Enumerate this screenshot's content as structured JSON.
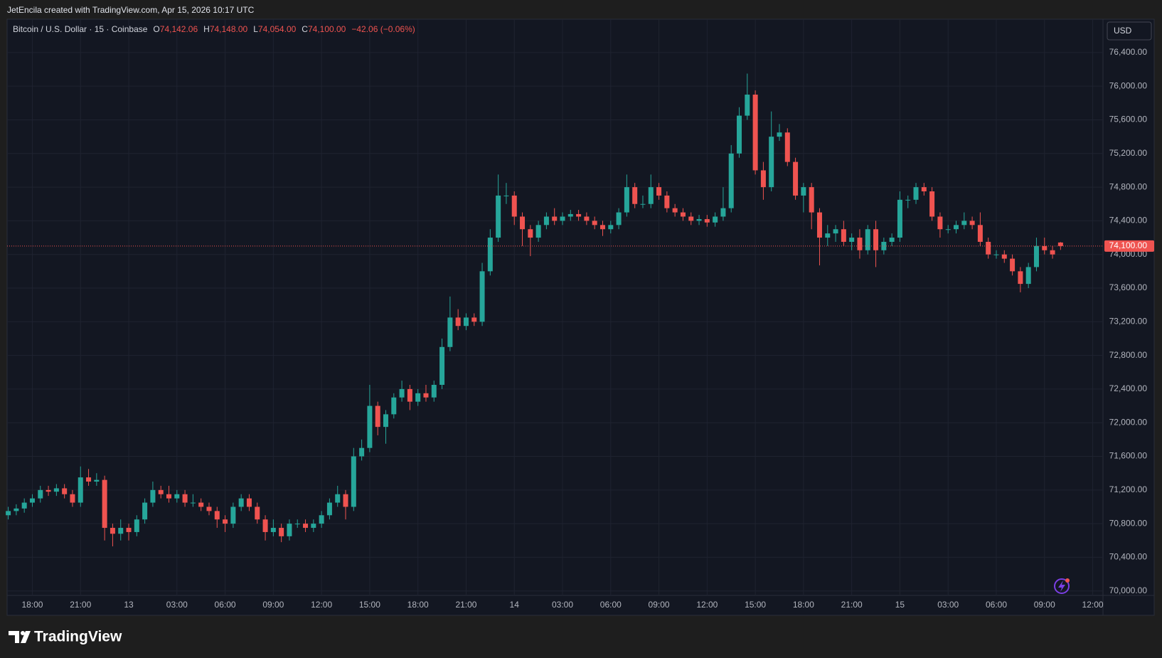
{
  "chart_data": {
    "type": "candlestick",
    "attribution": "JetEncila created with TradingView.com, Apr 15, 2026 10:17 UTC",
    "title": "Bitcoin / U.S. Dollar · 15 · Coinbase",
    "ohlc_header": {
      "open_label": "O",
      "open": "74,142.06",
      "high_label": "H",
      "high": "74,148.00",
      "low_label": "L",
      "low": "74,054.00",
      "close_label": "C",
      "close": "74,100.00",
      "change": "−42.06 (−0.06%)"
    },
    "currency": "USD",
    "brand": "TradingView",
    "up_color": "#26a69a",
    "down_color": "#ef5350",
    "grid": true,
    "last_price": {
      "value": 74100,
      "label": "74,100.00"
    },
    "xlim": [
      16.43,
      84.64
    ],
    "ylim": [
      69947,
      76788
    ],
    "xticks": [
      {
        "value": 18,
        "label": "18:00"
      },
      {
        "value": 21,
        "label": "21:00"
      },
      {
        "value": 24,
        "label": "13"
      },
      {
        "value": 27,
        "label": "03:00"
      },
      {
        "value": 30,
        "label": "06:00"
      },
      {
        "value": 33,
        "label": "09:00"
      },
      {
        "value": 36,
        "label": "12:00"
      },
      {
        "value": 39,
        "label": "15:00"
      },
      {
        "value": 42,
        "label": "18:00"
      },
      {
        "value": 45,
        "label": "21:00"
      },
      {
        "value": 48,
        "label": "14"
      },
      {
        "value": 51,
        "label": "03:00"
      },
      {
        "value": 54,
        "label": "06:00"
      },
      {
        "value": 57,
        "label": "09:00"
      },
      {
        "value": 60,
        "label": "12:00"
      },
      {
        "value": 63,
        "label": "15:00"
      },
      {
        "value": 66,
        "label": "18:00"
      },
      {
        "value": 69,
        "label": "21:00"
      },
      {
        "value": 72,
        "label": "15"
      },
      {
        "value": 75,
        "label": "03:00"
      },
      {
        "value": 78,
        "label": "06:00"
      },
      {
        "value": 81,
        "label": "09:00"
      },
      {
        "value": 84,
        "label": "12:00"
      }
    ],
    "yticks": [
      {
        "value": 70000,
        "label": "70,000.00"
      },
      {
        "value": 70400,
        "label": "70,400.00"
      },
      {
        "value": 70800,
        "label": "70,800.00"
      },
      {
        "value": 71200,
        "label": "71,200.00"
      },
      {
        "value": 71600,
        "label": "71,600.00"
      },
      {
        "value": 72000,
        "label": "72,000.00"
      },
      {
        "value": 72400,
        "label": "72,400.00"
      },
      {
        "value": 72800,
        "label": "72,800.00"
      },
      {
        "value": 73200,
        "label": "73,200.00"
      },
      {
        "value": 73600,
        "label": "73,600.00"
      },
      {
        "value": 74000,
        "label": "74,000.00"
      },
      {
        "value": 74400,
        "label": "74,400.00"
      },
      {
        "value": 74800,
        "label": "74,800.00"
      },
      {
        "value": 75200,
        "label": "75,200.00"
      },
      {
        "value": 75600,
        "label": "75,600.00"
      },
      {
        "value": 76000,
        "label": "76,000.00"
      },
      {
        "value": 76400,
        "label": "76,400.00"
      }
    ],
    "x": [
      16.5,
      17,
      17.5,
      18,
      18.5,
      19,
      19.5,
      20,
      20.5,
      21,
      21.5,
      22,
      22.5,
      23,
      23.5,
      24,
      24.5,
      25,
      25.5,
      26,
      26.5,
      27,
      27.5,
      28,
      28.5,
      29,
      29.5,
      30,
      30.5,
      31,
      31.5,
      32,
      32.5,
      33,
      33.5,
      34,
      34.5,
      35,
      35.5,
      36,
      36.5,
      37,
      37.5,
      38,
      38.5,
      39,
      39.5,
      40,
      40.5,
      41,
      41.5,
      42,
      42.5,
      43,
      43.5,
      44,
      44.5,
      45,
      45.5,
      46,
      46.5,
      47,
      47.5,
      48,
      48.5,
      49,
      49.5,
      50,
      50.5,
      51,
      51.5,
      52,
      52.5,
      53,
      53.5,
      54,
      54.5,
      55,
      55.5,
      56,
      56.5,
      57,
      57.5,
      58,
      58.5,
      59,
      59.5,
      60,
      60.5,
      61,
      61.5,
      62,
      62.5,
      63,
      63.5,
      64,
      64.5,
      65,
      65.5,
      66,
      66.5,
      67,
      67.5,
      68,
      68.5,
      69,
      69.5,
      70,
      70.5,
      71,
      71.5,
      72,
      72.5,
      73,
      73.5,
      74,
      74.5,
      75,
      75.5,
      76,
      76.5,
      77,
      77.5,
      78,
      78.5,
      79,
      79.5,
      80,
      80.5,
      81,
      81.5,
      82
    ],
    "open": [
      70900,
      70950,
      70980,
      71050,
      71100,
      71200,
      71180,
      71220,
      71150,
      71050,
      71350,
      71300,
      71320,
      70750,
      70680,
      70750,
      70700,
      70850,
      71050,
      71200,
      71150,
      71100,
      71150,
      71050,
      71050,
      71000,
      70950,
      70850,
      70800,
      71000,
      71100,
      71000,
      70850,
      70700,
      70750,
      70650,
      70800,
      70800,
      70750,
      70800,
      70900,
      71050,
      71150,
      71000,
      71600,
      71700,
      72200,
      71950,
      72100,
      72300,
      72400,
      72250,
      72350,
      72300,
      72450,
      72900,
      73250,
      73150,
      73250,
      73200,
      73800,
      74200,
      74700,
      74700,
      74450,
      74300,
      74200,
      74350,
      74450,
      74400,
      74450,
      74480,
      74450,
      74400,
      74350,
      74300,
      74350,
      74500,
      74800,
      74600,
      74600,
      74800,
      74700,
      74550,
      74500,
      74450,
      74400,
      74420,
      74380,
      74450,
      74550,
      75200,
      75650,
      75900,
      75000,
      74800,
      75400,
      75450,
      75100,
      74700,
      74800,
      74500,
      74200,
      74250,
      74300,
      74150,
      74200,
      74050,
      74300,
      74050,
      74150,
      74200,
      74650,
      74650,
      74800,
      74750,
      74450,
      74300,
      74300,
      74350,
      74400,
      74350,
      74150,
      74000,
      74000,
      73950,
      73800,
      73650,
      73850,
      74100,
      74050,
      74142.06
    ],
    "high": [
      71000,
      71030,
      71100,
      71150,
      71250,
      71250,
      71270,
      71270,
      71200,
      71480,
      71450,
      71400,
      71370,
      70800,
      70850,
      70800,
      70900,
      71100,
      71300,
      71250,
      71250,
      71200,
      71200,
      71150,
      71100,
      71050,
      71000,
      70900,
      71050,
      71150,
      71150,
      71050,
      70900,
      70850,
      70800,
      70850,
      70850,
      70850,
      70850,
      70950,
      71100,
      71250,
      71200,
      71700,
      71800,
      72450,
      72250,
      72150,
      72350,
      72500,
      72450,
      72400,
      72450,
      72500,
      73000,
      73500,
      73350,
      73300,
      73300,
      73900,
      74300,
      74950,
      74850,
      74750,
      74500,
      74350,
      74400,
      74500,
      74550,
      74500,
      74530,
      74530,
      74500,
      74450,
      74400,
      74400,
      74550,
      74950,
      74850,
      74700,
      74950,
      74850,
      74750,
      74600,
      74550,
      74500,
      74470,
      74470,
      74500,
      74800,
      75300,
      75750,
      76150,
      75950,
      75100,
      75700,
      75550,
      75500,
      75150,
      74850,
      74850,
      74550,
      74350,
      74350,
      74400,
      74250,
      74300,
      74350,
      74400,
      74200,
      74250,
      74750,
      74700,
      74850,
      74850,
      74800,
      74500,
      74350,
      74400,
      74500,
      74450,
      74500,
      74200,
      74050,
      74050,
      74000,
      73850,
      73900,
      74200,
      74200,
      74100,
      74148
    ],
    "low": [
      70850,
      70900,
      70930,
      71000,
      71050,
      71130,
      71130,
      71100,
      71000,
      71000,
      71250,
      71250,
      70600,
      70530,
      70600,
      70600,
      70650,
      70800,
      71000,
      71100,
      71050,
      71050,
      71000,
      71000,
      70950,
      70900,
      70750,
      70700,
      70750,
      70950,
      70950,
      70800,
      70600,
      70650,
      70580,
      70600,
      70750,
      70700,
      70700,
      70750,
      70850,
      71000,
      70850,
      70950,
      71550,
      71650,
      71850,
      71750,
      72050,
      72250,
      72150,
      72200,
      72250,
      72250,
      72400,
      72850,
      73100,
      73100,
      73150,
      73150,
      73750,
      74150,
      74600,
      74350,
      74100,
      73980,
      74150,
      74300,
      74350,
      74350,
      74400,
      74400,
      74350,
      74300,
      74220,
      74250,
      74300,
      74450,
      74550,
      74550,
      74550,
      74650,
      74500,
      74450,
      74400,
      74350,
      74350,
      74330,
      74330,
      74400,
      74500,
      75150,
      75600,
      74950,
      74650,
      74750,
      75350,
      75050,
      74650,
      74500,
      74300,
      73870,
      74100,
      74150,
      74100,
      74050,
      73950,
      74000,
      73850,
      74000,
      74100,
      74150,
      74550,
      74600,
      74700,
      74400,
      74200,
      74250,
      74250,
      74300,
      74300,
      74100,
      73950,
      73950,
      73900,
      73750,
      73550,
      73600,
      73800,
      74000,
      73950,
      74054
    ],
    "close": [
      70950,
      70980,
      71050,
      71100,
      71200,
      71180,
      71220,
      71150,
      71050,
      71350,
      71300,
      71320,
      70750,
      70680,
      70750,
      70700,
      70850,
      71050,
      71200,
      71150,
      71100,
      71150,
      71050,
      71050,
      71000,
      70950,
      70850,
      70800,
      71000,
      71100,
      71000,
      70850,
      70700,
      70750,
      70650,
      70800,
      70800,
      70750,
      70800,
      70900,
      71050,
      71150,
      71000,
      71600,
      71700,
      72200,
      71950,
      72100,
      72300,
      72400,
      72250,
      72350,
      72300,
      72450,
      72900,
      73250,
      73150,
      73250,
      73200,
      73800,
      74200,
      74700,
      74700,
      74450,
      74300,
      74200,
      74350,
      74450,
      74400,
      74450,
      74480,
      74450,
      74400,
      74350,
      74300,
      74350,
      74500,
      74800,
      74600,
      74600,
      74800,
      74700,
      74550,
      74500,
      74450,
      74400,
      74420,
      74380,
      74450,
      74550,
      75200,
      75650,
      75900,
      75000,
      74800,
      75400,
      75450,
      75100,
      74700,
      74800,
      74500,
      74200,
      74250,
      74300,
      74150,
      74200,
      74050,
      74300,
      74050,
      74150,
      74200,
      74650,
      74650,
      74800,
      74750,
      74450,
      74300,
      74300,
      74350,
      74400,
      74350,
      74150,
      74000,
      74000,
      73950,
      73800,
      73650,
      73850,
      74100,
      74050,
      74000,
      74100
    ]
  }
}
